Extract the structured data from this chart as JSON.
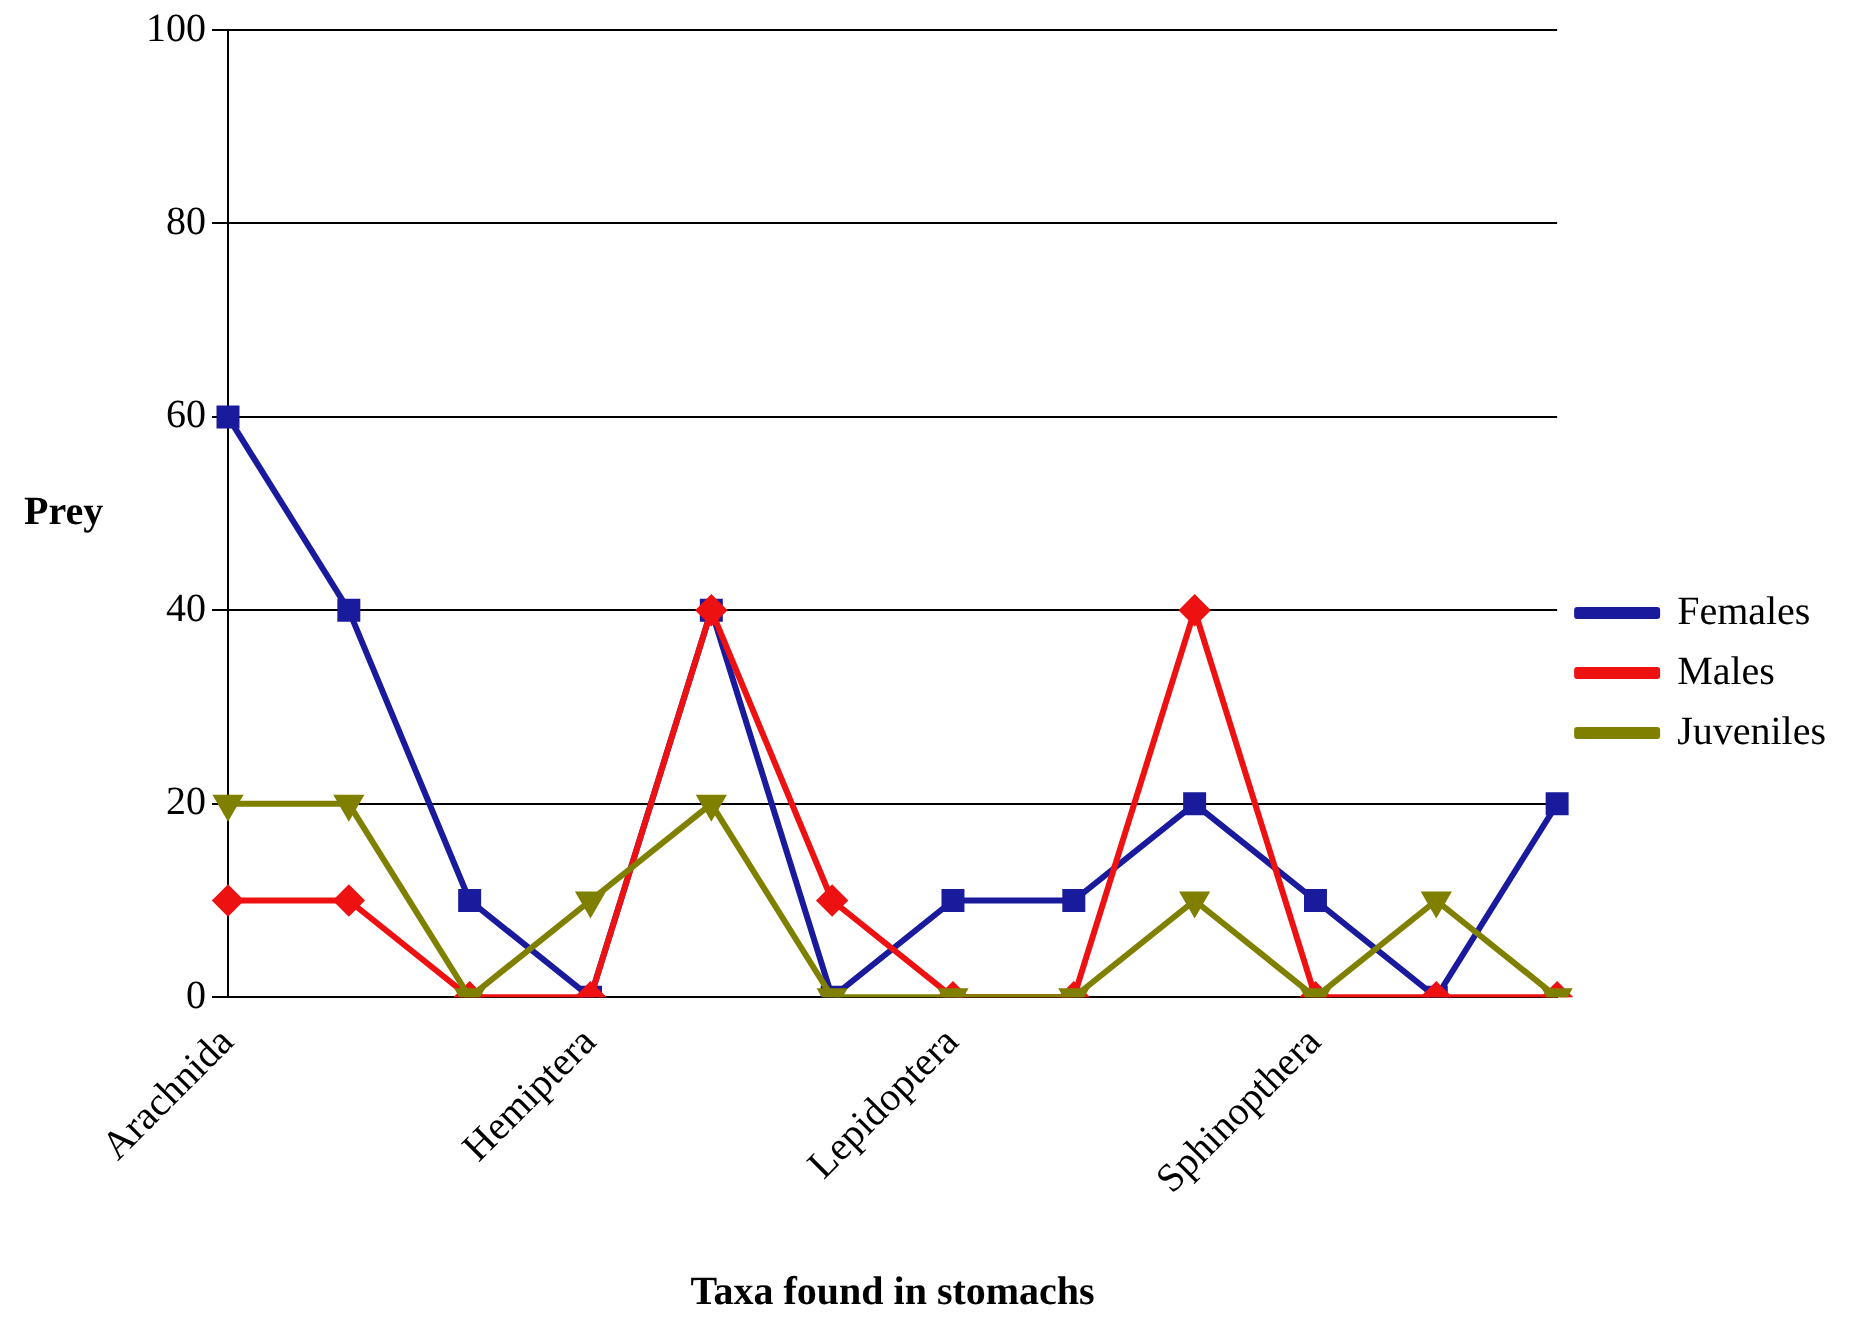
{
  "chart_data": {
    "type": "line",
    "xlabel": "Taxa found in stomachs",
    "ylabel": "Prey",
    "categories": [
      "Arachnida",
      null,
      null,
      "Hemiptera",
      null,
      null,
      "Lepidoptera",
      null,
      null,
      "Sphinopthera",
      null,
      null
    ],
    "series": [
      {
        "name": "Females",
        "color": "#1a1a9c",
        "marker": "square",
        "values": [
          60,
          40,
          10,
          0,
          40,
          0,
          10,
          10,
          20,
          10,
          0,
          20
        ]
      },
      {
        "name": "Males",
        "color": "#ee1111",
        "marker": "diamond",
        "values": [
          10,
          10,
          0,
          0,
          40,
          10,
          0,
          0,
          40,
          0,
          0,
          0
        ]
      },
      {
        "name": "Juveniles",
        "color": "#808000",
        "marker": "triangle",
        "values": [
          20,
          20,
          0,
          10,
          20,
          0,
          0,
          0,
          10,
          0,
          10,
          0
        ]
      }
    ],
    "ylim": [
      0,
      100
    ],
    "yticks": [
      0,
      20,
      40,
      60,
      80,
      100
    ],
    "grid": "y",
    "legend": "right",
    "line_style": "solid"
  }
}
